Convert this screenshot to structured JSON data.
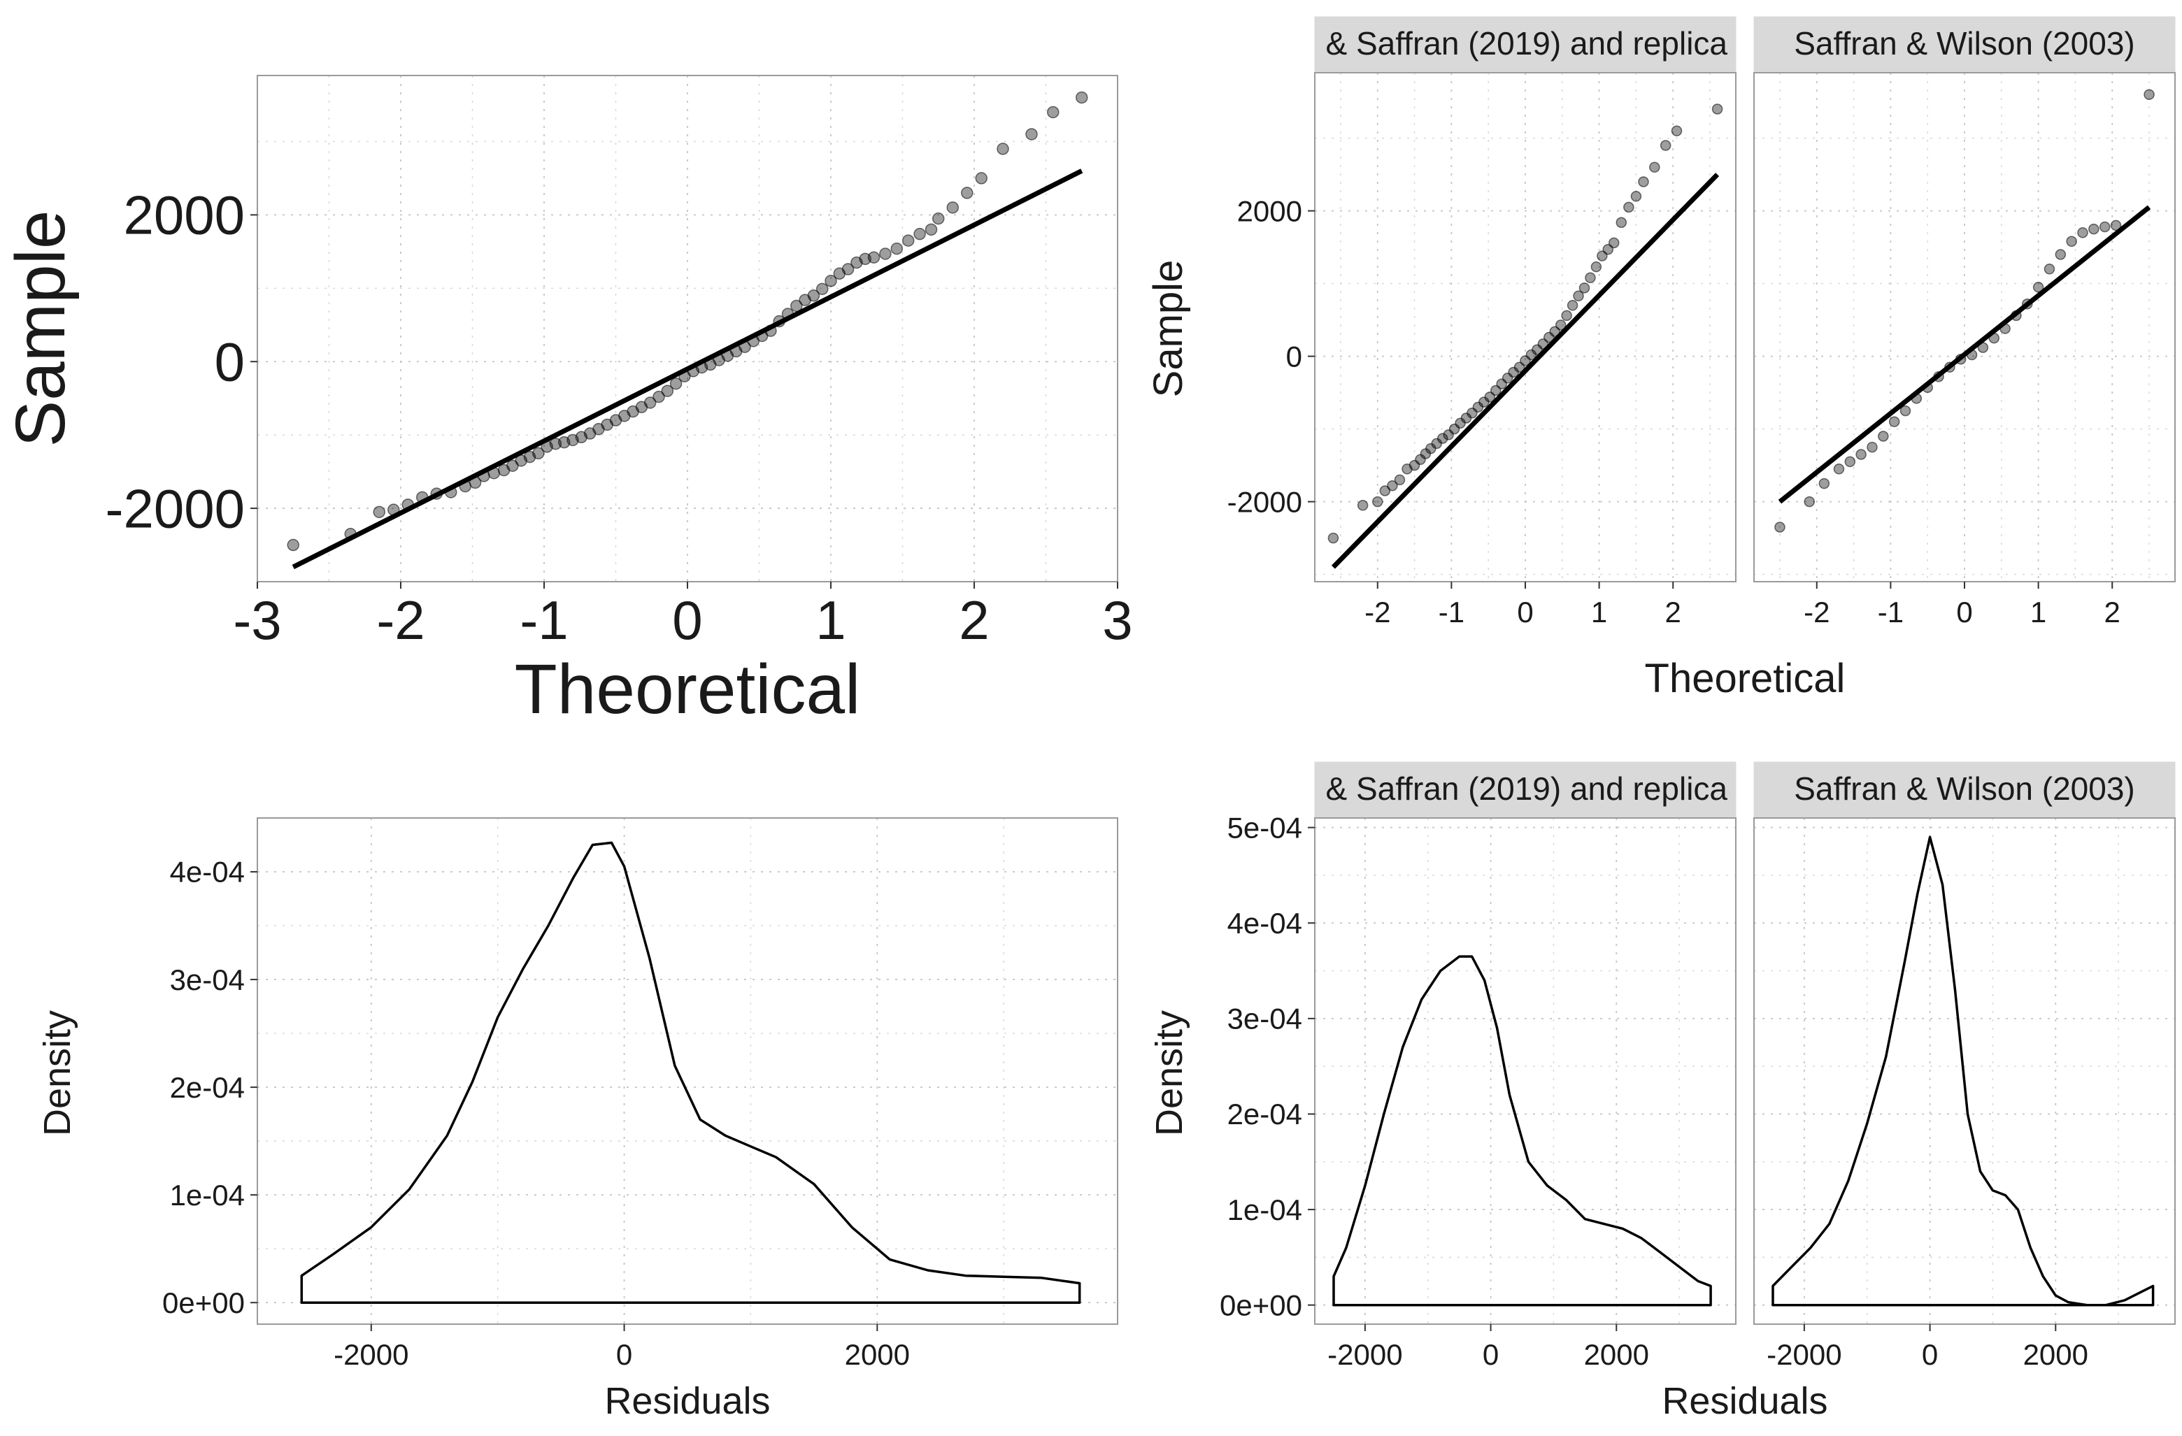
{
  "chart_data": [
    {
      "id": "qq_all",
      "type": "scatter",
      "subtype": "qq-plot",
      "title": "",
      "xlabel": "Theoretical",
      "ylabel": "Sample",
      "xlim": [
        -3,
        3
      ],
      "ylim": [
        -3000,
        3900
      ],
      "xticks": [
        -3,
        -2,
        -1,
        0,
        1,
        2,
        3
      ],
      "xticklabels": [
        "-3",
        "-2",
        "-1",
        "0",
        "1",
        "2",
        "3"
      ],
      "yticks": [
        -2000,
        0,
        2000
      ],
      "yticklabels": [
        "-2000",
        "0",
        "2000"
      ],
      "grid": true,
      "reference_line": {
        "x": [
          -2.75,
          2.75
        ],
        "y": [
          -2800,
          2600
        ]
      },
      "points": [
        [
          -2.75,
          -2500
        ],
        [
          -2.35,
          -2350
        ],
        [
          -2.15,
          -2050
        ],
        [
          -2.05,
          -2020
        ],
        [
          -1.95,
          -1950
        ],
        [
          -1.85,
          -1850
        ],
        [
          -1.75,
          -1800
        ],
        [
          -1.65,
          -1780
        ],
        [
          -1.55,
          -1700
        ],
        [
          -1.48,
          -1650
        ],
        [
          -1.42,
          -1560
        ],
        [
          -1.35,
          -1520
        ],
        [
          -1.28,
          -1480
        ],
        [
          -1.22,
          -1420
        ],
        [
          -1.16,
          -1350
        ],
        [
          -1.1,
          -1300
        ],
        [
          -1.04,
          -1250
        ],
        [
          -0.98,
          -1160
        ],
        [
          -0.92,
          -1120
        ],
        [
          -0.86,
          -1100
        ],
        [
          -0.8,
          -1070
        ],
        [
          -0.74,
          -1030
        ],
        [
          -0.68,
          -980
        ],
        [
          -0.62,
          -920
        ],
        [
          -0.56,
          -860
        ],
        [
          -0.5,
          -800
        ],
        [
          -0.44,
          -740
        ],
        [
          -0.38,
          -680
        ],
        [
          -0.32,
          -620
        ],
        [
          -0.26,
          -560
        ],
        [
          -0.2,
          -480
        ],
        [
          -0.14,
          -400
        ],
        [
          -0.08,
          -300
        ],
        [
          -0.02,
          -200
        ],
        [
          0.04,
          -130
        ],
        [
          0.1,
          -80
        ],
        [
          0.16,
          -40
        ],
        [
          0.22,
          20
        ],
        [
          0.28,
          80
        ],
        [
          0.34,
          140
        ],
        [
          0.4,
          200
        ],
        [
          0.46,
          280
        ],
        [
          0.52,
          350
        ],
        [
          0.58,
          420
        ],
        [
          0.64,
          550
        ],
        [
          0.7,
          650
        ],
        [
          0.76,
          760
        ],
        [
          0.82,
          840
        ],
        [
          0.88,
          900
        ],
        [
          0.94,
          990
        ],
        [
          1.0,
          1100
        ],
        [
          1.06,
          1200
        ],
        [
          1.12,
          1260
        ],
        [
          1.18,
          1350
        ],
        [
          1.24,
          1400
        ],
        [
          1.3,
          1420
        ],
        [
          1.38,
          1470
        ],
        [
          1.46,
          1540
        ],
        [
          1.54,
          1650
        ],
        [
          1.62,
          1740
        ],
        [
          1.7,
          1800
        ],
        [
          1.75,
          1950
        ],
        [
          1.85,
          2100
        ],
        [
          1.95,
          2300
        ],
        [
          2.05,
          2500
        ],
        [
          2.2,
          2900
        ],
        [
          2.4,
          3100
        ],
        [
          2.55,
          3400
        ],
        [
          2.75,
          3600
        ]
      ]
    },
    {
      "id": "qq_facet_1",
      "type": "scatter",
      "subtype": "qq-plot",
      "facet_label": "& Saffran (2019) and replica",
      "xlim": [
        -2.85,
        2.85
      ],
      "ylim": [
        -3100,
        3900
      ],
      "xticks": [
        -2,
        -1,
        0,
        1,
        2
      ],
      "xticklabels": [
        "-2",
        "-1",
        "0",
        "1",
        "2"
      ],
      "yticks": [
        -2000,
        0,
        2000
      ],
      "yticklabels": [
        "-2000",
        "0",
        "2000"
      ],
      "grid": true,
      "reference_line": {
        "x": [
          -2.6,
          2.6
        ],
        "y": [
          -2900,
          2500
        ]
      },
      "points": [
        [
          -2.6,
          -2500
        ],
        [
          -2.2,
          -2050
        ],
        [
          -2.0,
          -2000
        ],
        [
          -1.9,
          -1850
        ],
        [
          -1.8,
          -1780
        ],
        [
          -1.7,
          -1700
        ],
        [
          -1.6,
          -1550
        ],
        [
          -1.5,
          -1500
        ],
        [
          -1.42,
          -1420
        ],
        [
          -1.35,
          -1340
        ],
        [
          -1.28,
          -1270
        ],
        [
          -1.2,
          -1200
        ],
        [
          -1.12,
          -1130
        ],
        [
          -1.04,
          -1080
        ],
        [
          -0.96,
          -1000
        ],
        [
          -0.88,
          -920
        ],
        [
          -0.8,
          -850
        ],
        [
          -0.72,
          -780
        ],
        [
          -0.64,
          -700
        ],
        [
          -0.56,
          -630
        ],
        [
          -0.48,
          -560
        ],
        [
          -0.4,
          -470
        ],
        [
          -0.32,
          -380
        ],
        [
          -0.24,
          -300
        ],
        [
          -0.16,
          -220
        ],
        [
          -0.08,
          -150
        ],
        [
          0.0,
          -60
        ],
        [
          0.08,
          20
        ],
        [
          0.16,
          90
        ],
        [
          0.24,
          170
        ],
        [
          0.32,
          260
        ],
        [
          0.4,
          340
        ],
        [
          0.48,
          430
        ],
        [
          0.56,
          560
        ],
        [
          0.64,
          700
        ],
        [
          0.72,
          830
        ],
        [
          0.8,
          940
        ],
        [
          0.88,
          1080
        ],
        [
          0.96,
          1230
        ],
        [
          1.04,
          1380
        ],
        [
          1.12,
          1470
        ],
        [
          1.2,
          1560
        ],
        [
          1.3,
          1840
        ],
        [
          1.4,
          2050
        ],
        [
          1.5,
          2200
        ],
        [
          1.6,
          2400
        ],
        [
          1.75,
          2600
        ],
        [
          1.9,
          2900
        ],
        [
          2.05,
          3100
        ],
        [
          2.6,
          3400
        ]
      ]
    },
    {
      "id": "qq_facet_2",
      "type": "scatter",
      "subtype": "qq-plot",
      "facet_label": "Saffran & Wilson (2003)",
      "xlim": [
        -2.85,
        2.85
      ],
      "ylim": [
        -3100,
        3900
      ],
      "xticks": [
        -2,
        -1,
        0,
        1,
        2
      ],
      "xticklabels": [
        "-2",
        "-1",
        "0",
        "1",
        "2"
      ],
      "grid": true,
      "reference_line": {
        "x": [
          -2.5,
          2.5
        ],
        "y": [
          -2000,
          2050
        ]
      },
      "points": [
        [
          -2.5,
          -2350
        ],
        [
          -2.1,
          -2000
        ],
        [
          -1.9,
          -1750
        ],
        [
          -1.7,
          -1550
        ],
        [
          -1.55,
          -1450
        ],
        [
          -1.4,
          -1350
        ],
        [
          -1.25,
          -1250
        ],
        [
          -1.1,
          -1100
        ],
        [
          -0.95,
          -900
        ],
        [
          -0.8,
          -750
        ],
        [
          -0.65,
          -580
        ],
        [
          -0.5,
          -430
        ],
        [
          -0.35,
          -280
        ],
        [
          -0.2,
          -150
        ],
        [
          -0.05,
          -40
        ],
        [
          0.1,
          20
        ],
        [
          0.25,
          120
        ],
        [
          0.4,
          250
        ],
        [
          0.55,
          380
        ],
        [
          0.7,
          560
        ],
        [
          0.85,
          720
        ],
        [
          1.0,
          950
        ],
        [
          1.15,
          1200
        ],
        [
          1.3,
          1400
        ],
        [
          1.45,
          1580
        ],
        [
          1.6,
          1700
        ],
        [
          1.75,
          1750
        ],
        [
          1.9,
          1780
        ],
        [
          2.05,
          1800
        ],
        [
          2.5,
          3600
        ]
      ]
    },
    {
      "id": "density_all",
      "type": "line",
      "subtype": "density",
      "xlabel": "Residuals",
      "ylabel": "Density",
      "xlim": [
        -2900,
        3900
      ],
      "ylim": [
        -2e-05,
        0.00045
      ],
      "xticks": [
        -2000,
        0,
        2000
      ],
      "xticklabels": [
        "-2000",
        "0",
        "2000"
      ],
      "yticks": [
        0,
        0.0001,
        0.0002,
        0.0003,
        0.0004
      ],
      "yticklabels": [
        "0e+00",
        "1e-04",
        "2e-04",
        "3e-04",
        "4e-04"
      ],
      "grid": true,
      "x": [
        -2550,
        -2300,
        -2000,
        -1700,
        -1400,
        -1200,
        -1000,
        -800,
        -600,
        -400,
        -250,
        -100,
        0,
        200,
        400,
        600,
        800,
        1000,
        1200,
        1500,
        1800,
        2100,
        2400,
        2700,
        3000,
        3300,
        3600
      ],
      "y": [
        2.5e-05,
        4.5e-05,
        7e-05,
        0.000105,
        0.000155,
        0.000205,
        0.000265,
        0.00031,
        0.00035,
        0.000395,
        0.000425,
        0.000427,
        0.000405,
        0.00032,
        0.00022,
        0.00017,
        0.000155,
        0.000145,
        0.000135,
        0.00011,
        7e-05,
        4e-05,
        3e-05,
        2.5e-05,
        2.4e-05,
        2.3e-05,
        1.8e-05
      ]
    },
    {
      "id": "density_facet_1",
      "type": "line",
      "subtype": "density",
      "facet_label": "& Saffran (2019) and replica",
      "xlim": [
        -2800,
        3900
      ],
      "ylim": [
        -2e-05,
        0.00051
      ],
      "xticks": [
        -2000,
        0,
        2000
      ],
      "xticklabels": [
        "-2000",
        "0",
        "2000"
      ],
      "yticks": [
        0,
        0.0001,
        0.0002,
        0.0003,
        0.0004,
        0.0005
      ],
      "yticklabels": [
        "0e+00",
        "1e-04",
        "2e-04",
        "3e-04",
        "4e-04",
        "5e-04"
      ],
      "grid": true,
      "x": [
        -2500,
        -2300,
        -2000,
        -1700,
        -1400,
        -1100,
        -800,
        -500,
        -300,
        -100,
        100,
        300,
        600,
        900,
        1200,
        1500,
        1800,
        2100,
        2400,
        2700,
        3000,
        3300,
        3500
      ],
      "y": [
        3e-05,
        6e-05,
        0.000125,
        0.0002,
        0.00027,
        0.00032,
        0.00035,
        0.000365,
        0.000365,
        0.00034,
        0.00029,
        0.00022,
        0.00015,
        0.000125,
        0.00011,
        9e-05,
        8.5e-05,
        8e-05,
        7e-05,
        5.5e-05,
        4e-05,
        2.5e-05,
        2e-05
      ]
    },
    {
      "id": "density_facet_2",
      "type": "line",
      "subtype": "density",
      "facet_label": "Saffran & Wilson (2003)",
      "xlim": [
        -2800,
        3900
      ],
      "ylim": [
        -2e-05,
        0.00051
      ],
      "xticks": [
        -2000,
        0,
        2000
      ],
      "xticklabels": [
        "-2000",
        "0",
        "2000"
      ],
      "grid": true,
      "x": [
        -2500,
        -2200,
        -1900,
        -1600,
        -1300,
        -1000,
        -700,
        -400,
        -200,
        0,
        200,
        400,
        600,
        800,
        1000,
        1200,
        1400,
        1600,
        1800,
        2000,
        2200,
        2500,
        2800,
        3100,
        3400,
        3550
      ],
      "y": [
        2e-05,
        4e-05,
        6e-05,
        8.5e-05,
        0.00013,
        0.00019,
        0.00026,
        0.00036,
        0.00043,
        0.00049,
        0.00044,
        0.00033,
        0.0002,
        0.00014,
        0.00012,
        0.000115,
        0.0001,
        6e-05,
        3e-05,
        1e-05,
        3e-06,
        0.0,
        0.0,
        5e-06,
        1.5e-05,
        2e-05
      ]
    }
  ],
  "shared_labels": {
    "right_top_xlabel": "Theoretical",
    "right_top_ylabel": "Sample",
    "right_bottom_xlabel": "Residuals",
    "right_bottom_ylabel": "Density"
  }
}
